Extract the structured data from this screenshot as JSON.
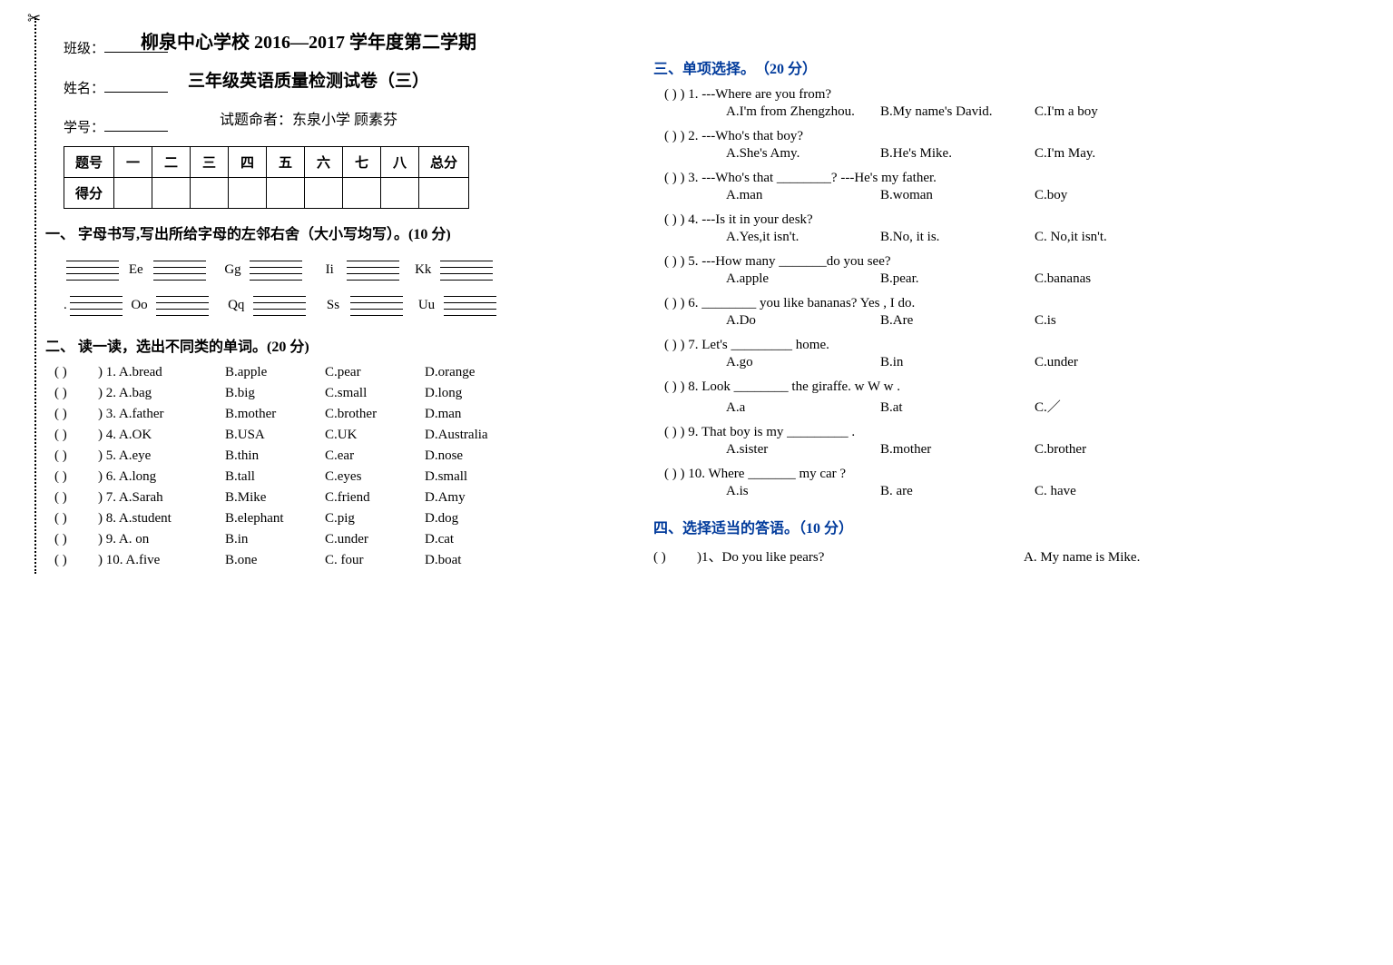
{
  "header": {
    "title_main": "柳泉中心学校 2016—2017 学年度第二学期",
    "title_sub": "三年级英语质量检测试卷（三）",
    "author_label": "试题命者：东泉小学  顾素芬",
    "class_label": "班级：",
    "name_label": "姓名：",
    "id_label": "学号："
  },
  "score_table": {
    "head_label": "题号",
    "cols": [
      "一",
      "二",
      "三",
      "四",
      "五",
      "六",
      "七",
      "八",
      "总分"
    ],
    "row2_label": "得分"
  },
  "section1": {
    "header": "一、 字母书写,写出所给字母的左邻右舍（大小写均写）。(10 分)",
    "row1": [
      "Ee",
      "Gg",
      "Ii",
      "Kk"
    ],
    "row2": [
      "Oo",
      "Qq",
      "Ss",
      "Uu"
    ]
  },
  "section2": {
    "header": "二、 读一读，选出不同类的单词。(20 分)",
    "items": [
      {
        "n": "1.",
        "a": "A.bread",
        "b": "B.apple",
        "c": "C.pear",
        "d": "D.orange"
      },
      {
        "n": "2.",
        "a": "A.bag",
        "b": "B.big",
        "c": "C.small",
        "d": "D.long"
      },
      {
        "n": "3.",
        "a": "A.father",
        "b": "B.mother",
        "c": "C.brother",
        "d": "D.man"
      },
      {
        "n": "4.",
        "a": "A.OK",
        "b": "B.USA",
        "c": "C.UK",
        "d": "D.Australia"
      },
      {
        "n": "5.",
        "a": "A.eye",
        "b": "B.thin",
        "c": "C.ear",
        "d": "D.nose"
      },
      {
        "n": "6.",
        "a": "A.long",
        "b": "B.tall",
        "c": "C.eyes",
        "d": "D.small"
      },
      {
        "n": "7.",
        "a": "A.Sarah",
        "b": "B.Mike",
        "c": "C.friend",
        "d": "D.Amy"
      },
      {
        "n": "8.",
        "a": "A.student",
        "b": "B.elephant",
        "c": "C.pig",
        "d": "D.dog"
      },
      {
        "n": "9.",
        "a": "A. on",
        "b": "B.in",
        "c": "C.under",
        "d": "D.cat"
      },
      {
        "n": "10.",
        "a": "A.five",
        "b": "B.one",
        "c": "C. four",
        "d": "D.boat"
      }
    ]
  },
  "section3": {
    "header": "三、单项选择。　（20 分）",
    "items": [
      {
        "n": "1.",
        "stem": "---Where are you from?",
        "opts": [
          "A.I'm from Zhengzhou.",
          "B.My name's David.",
          "C.I'm a boy"
        ]
      },
      {
        "n": "2.",
        "stem": "---Who's that boy?",
        "opts": [
          "A.She's Amy.",
          "B.He's Mike.",
          "C.I'm May."
        ]
      },
      {
        "n": "3.",
        "stem": "---Who's that ________?        ---He's my father.",
        "opts": [
          "A.man",
          "B.woman",
          "C.boy"
        ]
      },
      {
        "n": "4.",
        "stem": "---Is it in your desk?",
        "opts": [
          "A.Yes,it isn't.",
          "B.No, it is.",
          "C. No,it isn't."
        ]
      },
      {
        "n": "5.",
        "stem": "---How many _______do you see?",
        "opts": [
          "A.apple",
          "B.pear.",
          "C.bananas"
        ]
      },
      {
        "n": "6.",
        "stem": "________  you  like  bananas?   Yes , I  do.",
        "opts": [
          "A.Do",
          "B.Are",
          "C.is"
        ]
      },
      {
        "n": "7.",
        "stem": "Let's    _________    home.",
        "opts": [
          "A.go",
          "B.in",
          "C.under"
        ]
      },
      {
        "n": "8.",
        "stem": "Look    ________  the   giraffe. w    W w .",
        "opts": [
          "A.a",
          "B.at",
          "C.／"
        ]
      },
      {
        "n": "9.",
        "stem": "That   boy  is   my   _________   .",
        "opts": [
          "A.sister",
          "B.mother",
          "C.brother"
        ]
      },
      {
        "n": "10.",
        "stem": "Where     _______   my   car ?",
        "opts": [
          "A.is",
          "B. are",
          "C. have"
        ]
      }
    ]
  },
  "section4": {
    "header": "四、选择适当的答语。（10 分）",
    "items": [
      {
        "n": "1、",
        "stem": "Do you like pears?",
        "ans": "A. My name is Mike."
      }
    ]
  },
  "paren_text": "(        )"
}
